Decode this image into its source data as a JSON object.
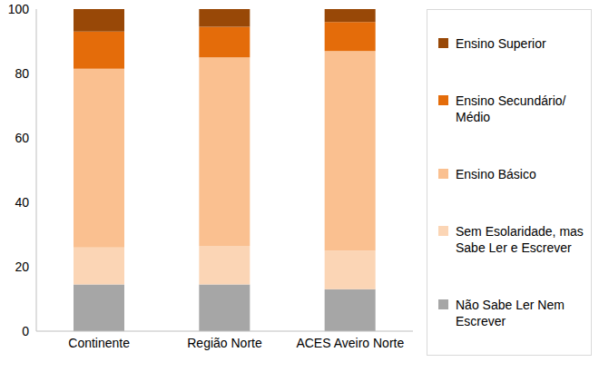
{
  "chart_data": {
    "type": "bar",
    "stacked": true,
    "categories": [
      "Continente",
      "Região Norte",
      "ACES Aveiro Norte"
    ],
    "series": [
      {
        "name": "Não Sabe Ler Nem Escrever",
        "color": "#a6a6a6",
        "values": [
          14.5,
          14.5,
          13
        ]
      },
      {
        "name": "Sem Esolaridade, mas Sabe Ler e Escrever",
        "color": "#fbd5b5",
        "values": [
          11.5,
          12,
          12
        ]
      },
      {
        "name": "Ensino Básico",
        "color": "#fac090",
        "values": [
          55.5,
          58.5,
          62
        ]
      },
      {
        "name": "Ensino Secundário/ Médio",
        "color": "#e46c0a",
        "values": [
          11.5,
          9.5,
          9
        ]
      },
      {
        "name": "Ensino Superior",
        "color": "#984807",
        "values": [
          7,
          5.5,
          4
        ]
      }
    ],
    "ylim": [
      0,
      100
    ],
    "yticks": [
      0,
      20,
      40,
      60,
      80,
      100
    ],
    "grid": false,
    "legend": "right"
  }
}
